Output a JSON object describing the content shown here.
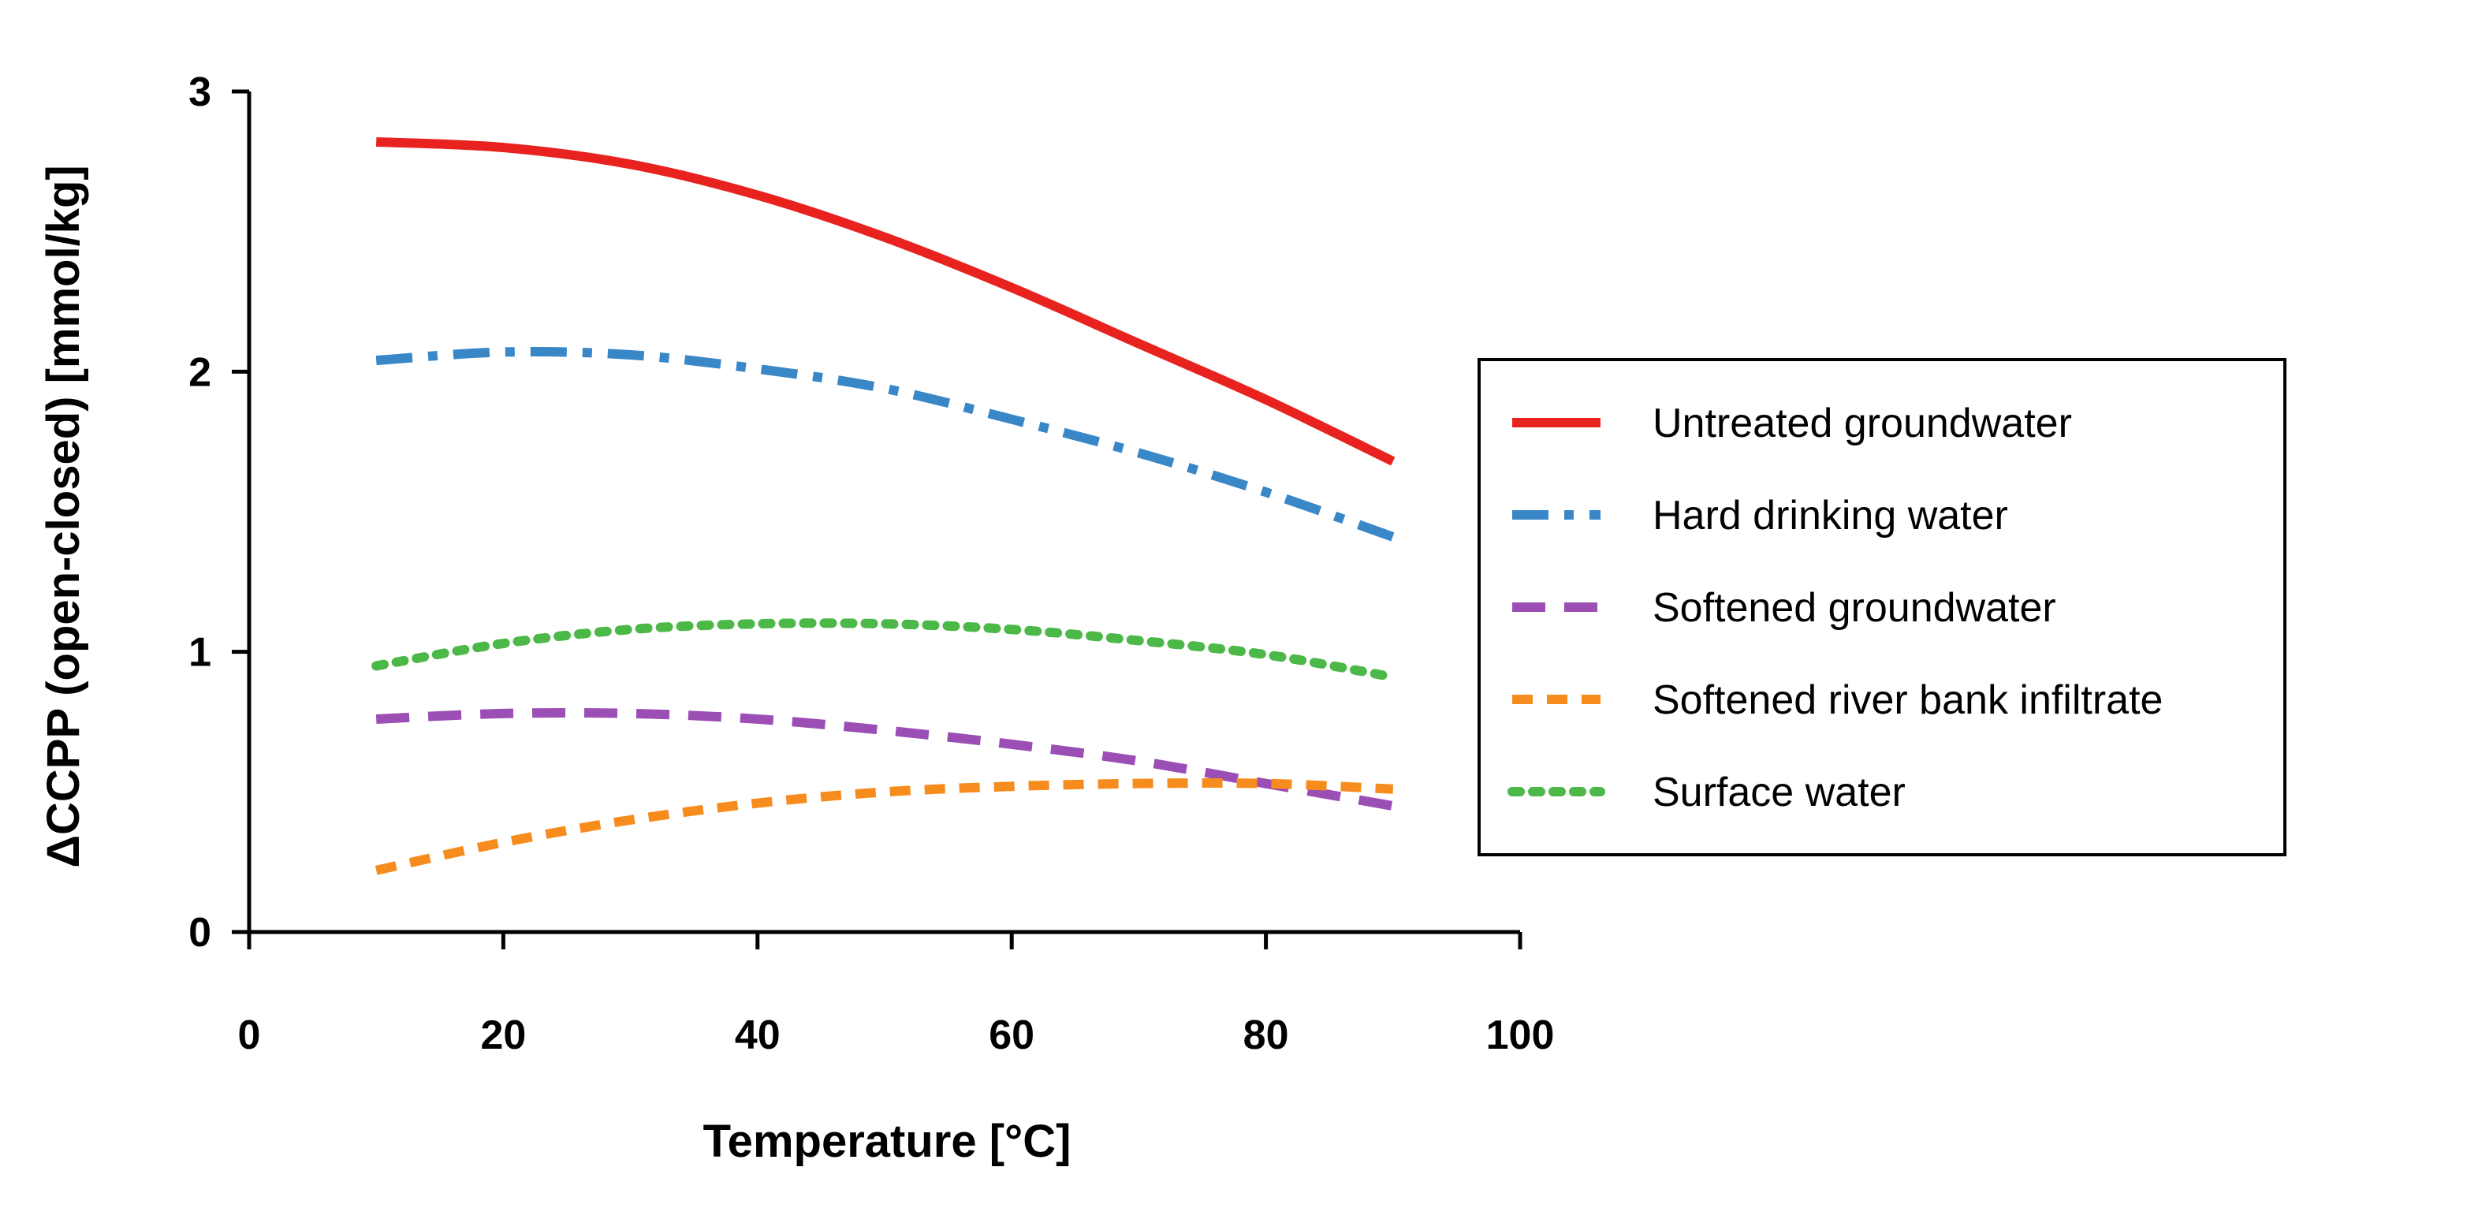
{
  "chart_data": {
    "type": "line",
    "title": "",
    "xlabel": "Temperature [°C]",
    "ylabel": "ΔCCPP (open-closed) [mmol/kg]",
    "xlim": [
      0,
      100
    ],
    "ylim": [
      0,
      3
    ],
    "x_ticks": [
      "0",
      "20",
      "40",
      "60",
      "80",
      "100"
    ],
    "y_ticks": [
      "0",
      "1",
      "2",
      "3"
    ],
    "grid": false,
    "legend_position": "right",
    "x": [
      10,
      20,
      30,
      40,
      50,
      60,
      70,
      80,
      90
    ],
    "series": [
      {
        "name": "Untreated groundwater",
        "color": "#e8231f",
        "style": "solid",
        "values": [
          2.82,
          2.8,
          2.74,
          2.63,
          2.48,
          2.3,
          2.1,
          1.9,
          1.68
        ]
      },
      {
        "name": "Hard drinking water",
        "color": "#3a87c8",
        "style": "dashdot",
        "values": [
          2.04,
          2.07,
          2.06,
          2.01,
          1.94,
          1.83,
          1.71,
          1.57,
          1.41
        ]
      },
      {
        "name": "Softened groundwater",
        "color": "#9b4fb5",
        "style": "dash",
        "values": [
          0.76,
          0.78,
          0.78,
          0.76,
          0.72,
          0.67,
          0.61,
          0.53,
          0.45
        ]
      },
      {
        "name": "Softened river bank infiltrate",
        "color": "#f78c1e",
        "style": "shortdash",
        "values": [
          0.22,
          0.32,
          0.4,
          0.46,
          0.5,
          0.52,
          0.53,
          0.53,
          0.51
        ]
      },
      {
        "name": "Surface water",
        "color": "#4cb848",
        "style": "dot",
        "values": [
          0.95,
          1.03,
          1.08,
          1.1,
          1.1,
          1.08,
          1.04,
          0.99,
          0.91
        ]
      }
    ]
  }
}
